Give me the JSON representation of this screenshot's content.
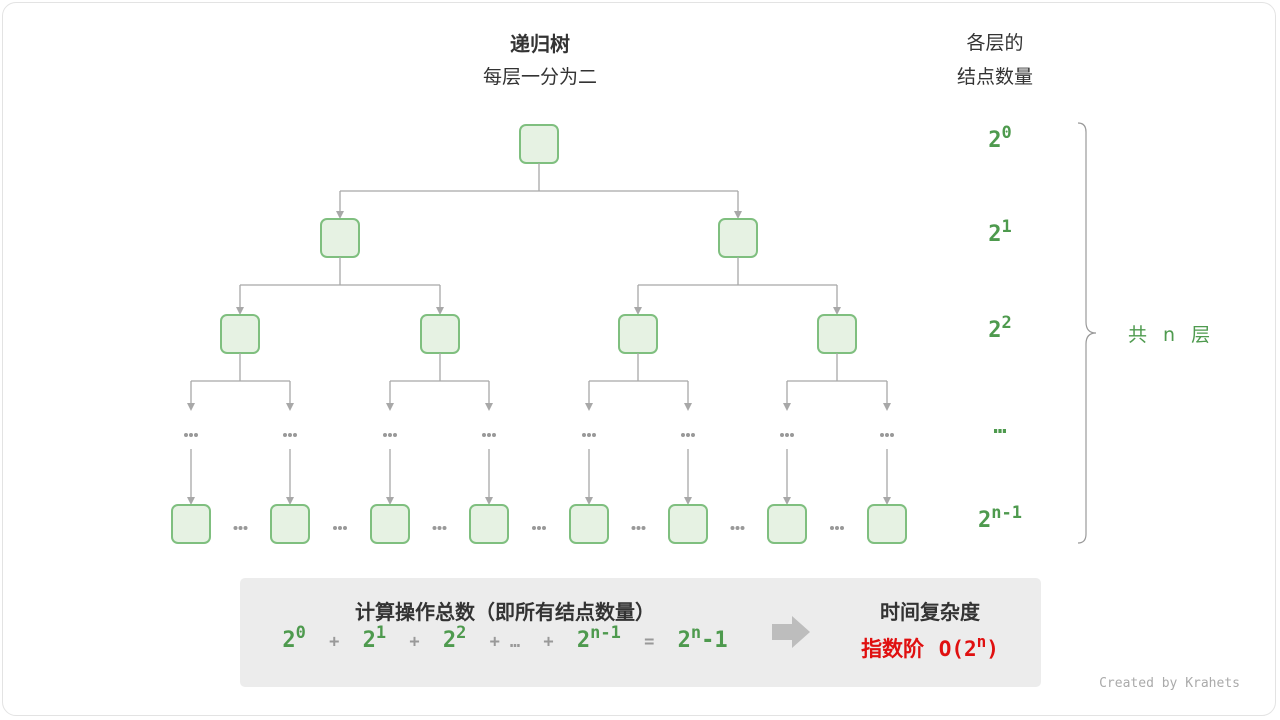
{
  "title": {
    "line1": "递归树",
    "line2": "每层一分为二"
  },
  "right_header": {
    "line1": "各层的",
    "line2": "结点数量"
  },
  "level_counts": [
    {
      "base": "2",
      "exp": "0"
    },
    {
      "base": "2",
      "exp": "1"
    },
    {
      "base": "2",
      "exp": "2"
    },
    {
      "base": "…",
      "exp": ""
    },
    {
      "base": "2",
      "exp": "n-1"
    }
  ],
  "layers_label": "共 n 层",
  "tree": {
    "node_fill": "#e6f2e3",
    "node_stroke": "#7fbf7f",
    "edge_color": "#a8a8a8",
    "ellipsis": "•••"
  },
  "summary": {
    "ops_title": "计算操作总数（即所有结点数量）",
    "formula": {
      "t0": "2",
      "e0": "0",
      "p1": "+",
      "t1": "2",
      "e1": "1",
      "p2": "+",
      "t2": "2",
      "e2": "2",
      "p3": "+",
      "dots": "…",
      "p4": "+",
      "t3": "2",
      "e3": "n-1",
      "eq": "=",
      "r": "2",
      "re": "n",
      "rt": "-1"
    },
    "complexity_title": "时间复杂度",
    "complexity_name": "指数阶",
    "complexity_open": "O(2",
    "complexity_exp": "n",
    "complexity_close": ")"
  },
  "credit": "Created by Krahets",
  "colors": {
    "green": "#4e9a4e",
    "red": "#e01010",
    "gray": "#a8a8a8"
  }
}
